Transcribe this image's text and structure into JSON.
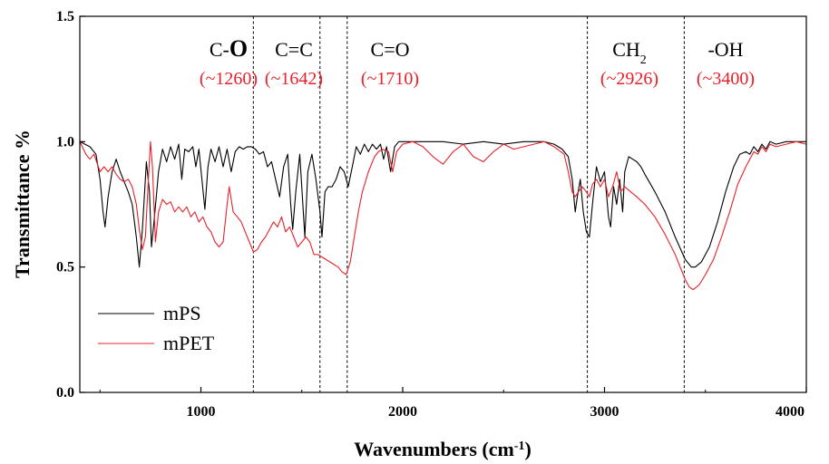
{
  "chart_data": {
    "type": "line",
    "xlabel": "Wavenumbers (cm",
    "xlabel_sup": "-1",
    "xlabel_end": ")",
    "ylabel": "Transmittance %",
    "xlim": [
      400,
      4000
    ],
    "ylim": [
      0.0,
      1.5
    ],
    "x_ticks": [
      1000,
      2000,
      3000,
      4000
    ],
    "x_tick_labels": [
      "1000",
      "2000",
      "3000",
      "4000"
    ],
    "y_ticks": [
      0.0,
      0.5,
      1.0,
      1.5
    ],
    "y_tick_labels": [
      "0.0",
      "0.5",
      "1.0",
      "1.5"
    ],
    "legend_position": "bottom-left",
    "colors": {
      "mPS": "#000000",
      "mPET": "#e8202a",
      "annotation_wave": "#e8202a"
    },
    "annotations": [
      {
        "x": 1260,
        "label": "C-",
        "label_big": "O",
        "wave": "(~1260)"
      },
      {
        "x": 1590,
        "label": "C=C",
        "wave": "(~1642)"
      },
      {
        "x": 1725,
        "label": "C=O",
        "wave": "(~1710)"
      },
      {
        "x": 2915,
        "label": "CH",
        "label_sub": "2",
        "wave": "(~2926)"
      },
      {
        "x": 3395,
        "label": "-OH",
        "wave": "(~3400)"
      }
    ],
    "series": [
      {
        "name": "mPS",
        "color": "#000000",
        "points": [
          [
            400,
            1.0
          ],
          [
            450,
            0.98
          ],
          [
            480,
            0.95
          ],
          [
            500,
            0.85
          ],
          [
            515,
            0.72
          ],
          [
            525,
            0.66
          ],
          [
            540,
            0.78
          ],
          [
            560,
            0.88
          ],
          [
            580,
            0.93
          ],
          [
            600,
            0.88
          ],
          [
            620,
            0.84
          ],
          [
            640,
            0.8
          ],
          [
            660,
            0.75
          ],
          [
            680,
            0.62
          ],
          [
            695,
            0.5
          ],
          [
            710,
            0.65
          ],
          [
            730,
            0.92
          ],
          [
            745,
            0.8
          ],
          [
            755,
            0.58
          ],
          [
            770,
            0.7
          ],
          [
            790,
            0.88
          ],
          [
            810,
            0.97
          ],
          [
            830,
            0.92
          ],
          [
            850,
            0.98
          ],
          [
            870,
            0.93
          ],
          [
            890,
            0.99
          ],
          [
            905,
            0.85
          ],
          [
            920,
            0.97
          ],
          [
            940,
            0.96
          ],
          [
            960,
            0.98
          ],
          [
            975,
            0.9
          ],
          [
            990,
            0.97
          ],
          [
            1005,
            0.85
          ],
          [
            1020,
            0.73
          ],
          [
            1035,
            0.9
          ],
          [
            1050,
            0.97
          ],
          [
            1070,
            0.92
          ],
          [
            1090,
            0.98
          ],
          [
            1110,
            0.9
          ],
          [
            1130,
            0.97
          ],
          [
            1150,
            0.88
          ],
          [
            1170,
            0.96
          ],
          [
            1190,
            0.98
          ],
          [
            1210,
            0.97
          ],
          [
            1230,
            0.98
          ],
          [
            1250,
            0.98
          ],
          [
            1270,
            0.97
          ],
          [
            1290,
            0.95
          ],
          [
            1310,
            0.96
          ],
          [
            1330,
            0.9
          ],
          [
            1350,
            0.92
          ],
          [
            1370,
            0.85
          ],
          [
            1390,
            0.78
          ],
          [
            1410,
            0.9
          ],
          [
            1430,
            0.95
          ],
          [
            1445,
            0.75
          ],
          [
            1455,
            0.65
          ],
          [
            1470,
            0.8
          ],
          [
            1490,
            0.95
          ],
          [
            1505,
            0.75
          ],
          [
            1515,
            0.62
          ],
          [
            1530,
            0.88
          ],
          [
            1550,
            0.95
          ],
          [
            1570,
            0.85
          ],
          [
            1590,
            0.72
          ],
          [
            1600,
            0.62
          ],
          [
            1615,
            0.8
          ],
          [
            1630,
            0.82
          ],
          [
            1650,
            0.82
          ],
          [
            1670,
            0.85
          ],
          [
            1690,
            0.9
          ],
          [
            1710,
            0.88
          ],
          [
            1730,
            0.82
          ],
          [
            1750,
            0.9
          ],
          [
            1770,
            0.98
          ],
          [
            1790,
            0.95
          ],
          [
            1810,
            0.99
          ],
          [
            1830,
            0.96
          ],
          [
            1850,
            0.99
          ],
          [
            1870,
            0.97
          ],
          [
            1890,
            0.99
          ],
          [
            1905,
            0.93
          ],
          [
            1920,
            0.98
          ],
          [
            1940,
            0.88
          ],
          [
            1960,
            0.98
          ],
          [
            1980,
            1.0
          ],
          [
            2100,
            1.0
          ],
          [
            2200,
            1.0
          ],
          [
            2300,
            0.99
          ],
          [
            2400,
            1.0
          ],
          [
            2500,
            0.99
          ],
          [
            2600,
            1.0
          ],
          [
            2700,
            1.0
          ],
          [
            2750,
            0.99
          ],
          [
            2790,
            0.97
          ],
          [
            2820,
            0.94
          ],
          [
            2840,
            0.85
          ],
          [
            2855,
            0.72
          ],
          [
            2865,
            0.78
          ],
          [
            2880,
            0.85
          ],
          [
            2895,
            0.72
          ],
          [
            2910,
            0.64
          ],
          [
            2925,
            0.62
          ],
          [
            2940,
            0.75
          ],
          [
            2960,
            0.9
          ],
          [
            2980,
            0.84
          ],
          [
            3000,
            0.88
          ],
          [
            3020,
            0.7
          ],
          [
            3030,
            0.66
          ],
          [
            3045,
            0.82
          ],
          [
            3060,
            0.75
          ],
          [
            3075,
            0.85
          ],
          [
            3090,
            0.72
          ],
          [
            3100,
            0.88
          ],
          [
            3120,
            0.94
          ],
          [
            3140,
            0.93
          ],
          [
            3160,
            0.92
          ],
          [
            3180,
            0.9
          ],
          [
            3200,
            0.87
          ],
          [
            3250,
            0.8
          ],
          [
            3300,
            0.72
          ],
          [
            3350,
            0.62
          ],
          [
            3400,
            0.53
          ],
          [
            3430,
            0.5
          ],
          [
            3450,
            0.5
          ],
          [
            3480,
            0.52
          ],
          [
            3520,
            0.58
          ],
          [
            3560,
            0.68
          ],
          [
            3600,
            0.8
          ],
          [
            3640,
            0.9
          ],
          [
            3670,
            0.95
          ],
          [
            3700,
            0.96
          ],
          [
            3720,
            0.95
          ],
          [
            3740,
            0.98
          ],
          [
            3760,
            0.96
          ],
          [
            3780,
            0.99
          ],
          [
            3800,
            0.97
          ],
          [
            3820,
            1.0
          ],
          [
            3850,
            0.99
          ],
          [
            3900,
            1.0
          ],
          [
            3950,
            1.0
          ],
          [
            4000,
            1.0
          ]
        ]
      },
      {
        "name": "mPET",
        "color": "#e8202a",
        "points": [
          [
            400,
            1.0
          ],
          [
            430,
            0.95
          ],
          [
            450,
            0.93
          ],
          [
            470,
            0.95
          ],
          [
            500,
            0.88
          ],
          [
            520,
            0.9
          ],
          [
            540,
            0.88
          ],
          [
            560,
            0.9
          ],
          [
            580,
            0.87
          ],
          [
            600,
            0.85
          ],
          [
            620,
            0.84
          ],
          [
            640,
            0.85
          ],
          [
            660,
            0.82
          ],
          [
            680,
            0.75
          ],
          [
            695,
            0.65
          ],
          [
            710,
            0.57
          ],
          [
            725,
            0.62
          ],
          [
            740,
            0.85
          ],
          [
            750,
            1.0
          ],
          [
            760,
            0.9
          ],
          [
            775,
            0.6
          ],
          [
            790,
            0.72
          ],
          [
            810,
            0.77
          ],
          [
            830,
            0.75
          ],
          [
            850,
            0.76
          ],
          [
            870,
            0.72
          ],
          [
            890,
            0.74
          ],
          [
            910,
            0.72
          ],
          [
            930,
            0.74
          ],
          [
            950,
            0.7
          ],
          [
            970,
            0.72
          ],
          [
            990,
            0.68
          ],
          [
            1010,
            0.7
          ],
          [
            1030,
            0.66
          ],
          [
            1050,
            0.64
          ],
          [
            1070,
            0.6
          ],
          [
            1090,
            0.58
          ],
          [
            1110,
            0.6
          ],
          [
            1130,
            0.75
          ],
          [
            1140,
            0.82
          ],
          [
            1160,
            0.72
          ],
          [
            1180,
            0.7
          ],
          [
            1200,
            0.68
          ],
          [
            1220,
            0.64
          ],
          [
            1240,
            0.6
          ],
          [
            1260,
            0.56
          ],
          [
            1280,
            0.57
          ],
          [
            1300,
            0.6
          ],
          [
            1320,
            0.62
          ],
          [
            1340,
            0.65
          ],
          [
            1360,
            0.68
          ],
          [
            1380,
            0.66
          ],
          [
            1400,
            0.7
          ],
          [
            1420,
            0.64
          ],
          [
            1440,
            0.66
          ],
          [
            1460,
            0.62
          ],
          [
            1480,
            0.58
          ],
          [
            1500,
            0.6
          ],
          [
            1520,
            0.62
          ],
          [
            1540,
            0.6
          ],
          [
            1560,
            0.55
          ],
          [
            1580,
            0.55
          ],
          [
            1600,
            0.54
          ],
          [
            1620,
            0.53
          ],
          [
            1640,
            0.52
          ],
          [
            1660,
            0.51
          ],
          [
            1680,
            0.5
          ],
          [
            1700,
            0.48
          ],
          [
            1720,
            0.47
          ],
          [
            1740,
            0.52
          ],
          [
            1760,
            0.62
          ],
          [
            1780,
            0.72
          ],
          [
            1800,
            0.8
          ],
          [
            1830,
            0.88
          ],
          [
            1860,
            0.94
          ],
          [
            1880,
            0.96
          ],
          [
            1900,
            0.97
          ],
          [
            1930,
            0.96
          ],
          [
            1950,
            0.88
          ],
          [
            1970,
            0.96
          ],
          [
            2000,
            0.99
          ],
          [
            2050,
            1.0
          ],
          [
            2100,
            0.98
          ],
          [
            2150,
            0.94
          ],
          [
            2200,
            0.91
          ],
          [
            2250,
            0.96
          ],
          [
            2300,
            0.99
          ],
          [
            2350,
            0.94
          ],
          [
            2400,
            0.92
          ],
          [
            2450,
            0.96
          ],
          [
            2500,
            0.99
          ],
          [
            2550,
            0.97
          ],
          [
            2600,
            0.98
          ],
          [
            2650,
            0.99
          ],
          [
            2700,
            1.0
          ],
          [
            2750,
            0.98
          ],
          [
            2800,
            0.95
          ],
          [
            2820,
            0.88
          ],
          [
            2840,
            0.8
          ],
          [
            2855,
            0.78
          ],
          [
            2870,
            0.8
          ],
          [
            2890,
            0.82
          ],
          [
            2910,
            0.8
          ],
          [
            2925,
            0.78
          ],
          [
            2940,
            0.83
          ],
          [
            2960,
            0.85
          ],
          [
            2980,
            0.82
          ],
          [
            3000,
            0.85
          ],
          [
            3020,
            0.78
          ],
          [
            3040,
            0.82
          ],
          [
            3060,
            0.88
          ],
          [
            3080,
            0.8
          ],
          [
            3100,
            0.82
          ],
          [
            3130,
            0.8
          ],
          [
            3160,
            0.78
          ],
          [
            3200,
            0.75
          ],
          [
            3250,
            0.7
          ],
          [
            3300,
            0.63
          ],
          [
            3350,
            0.55
          ],
          [
            3400,
            0.45
          ],
          [
            3420,
            0.42
          ],
          [
            3440,
            0.41
          ],
          [
            3470,
            0.43
          ],
          [
            3500,
            0.47
          ],
          [
            3540,
            0.53
          ],
          [
            3580,
            0.62
          ],
          [
            3620,
            0.72
          ],
          [
            3660,
            0.83
          ],
          [
            3700,
            0.9
          ],
          [
            3720,
            0.93
          ],
          [
            3740,
            0.96
          ],
          [
            3760,
            0.95
          ],
          [
            3780,
            0.98
          ],
          [
            3800,
            0.96
          ],
          [
            3820,
            0.99
          ],
          [
            3850,
            0.98
          ],
          [
            3900,
            0.99
          ],
          [
            3950,
            1.0
          ],
          [
            4000,
            0.99
          ]
        ]
      }
    ]
  }
}
